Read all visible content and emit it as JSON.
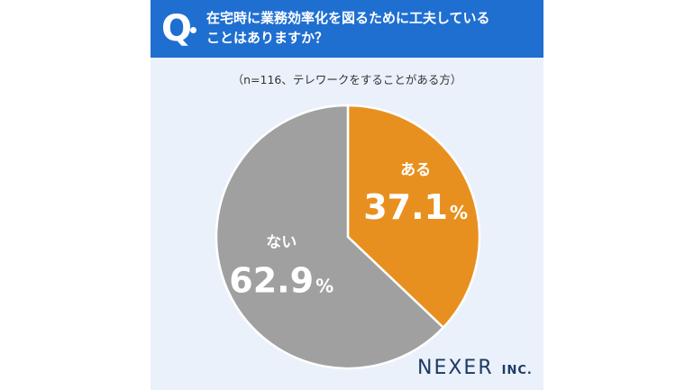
{
  "header": {
    "q_label": "Q",
    "question_line1": "在宅時に業務効率化を図るために工夫している",
    "question_line2": "ことはありますか？"
  },
  "sample_note": "（n=116、テレワークをすることがある方）",
  "brand": {
    "name": "NEXER",
    "suffix": "INC."
  },
  "colors": {
    "header_bg": "#1f6fd1",
    "aru": "#e8901f",
    "nai": "#a0a0a0",
    "card_bg": "#eaf1fa"
  },
  "chart_data": {
    "type": "pie",
    "title": "",
    "slices": [
      {
        "label": "ある",
        "value": 37.1,
        "display": "37.1",
        "unit": "%",
        "color": "#e8901f"
      },
      {
        "label": "ない",
        "value": 62.9,
        "display": "62.9",
        "unit": "%",
        "color": "#a0a0a0"
      }
    ],
    "start": "12 o'clock",
    "direction": "clockwise"
  }
}
